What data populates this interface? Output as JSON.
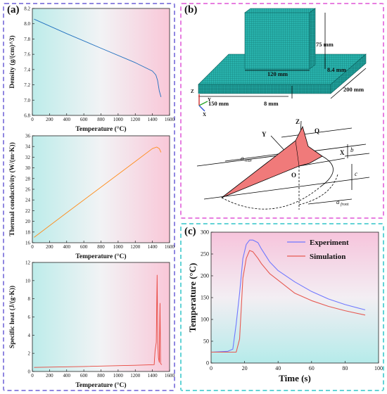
{
  "panels": {
    "a_label": "(a)",
    "b_label": "(b)",
    "c_label": "(c)"
  },
  "colors": {
    "density": "#1f6fbf",
    "conductivity": "#ff8c1a",
    "specific_heat": "#e8453c",
    "experiment": "#6f78ff",
    "simulation": "#e65a52",
    "mesh": "#1aa3a0",
    "heat_source": "#f07a7a"
  },
  "panel_b": {
    "dims": [
      "75 mm",
      "120 mm",
      "8.4 mm",
      "200 mm",
      "150 mm",
      "8 mm"
    ],
    "axes": {
      "z": "Z",
      "y": "Y",
      "x": "X"
    },
    "heat_source": {
      "z": "Z",
      "q": "Q",
      "y": "Y",
      "x": "X",
      "o": "O",
      "b": "b",
      "c": "c",
      "a_rear": "a",
      "a_rear_sub": "rear",
      "a_front": "a",
      "a_front_sub": "front"
    }
  },
  "chart_data": [
    {
      "type": "line",
      "xlabel": "Temperature (°C)",
      "ylabel": "Density (g/(cm)^3)",
      "xlim": [
        0,
        1600
      ],
      "ylim": [
        6.8,
        8.2
      ],
      "xticks": [
        0,
        200,
        400,
        600,
        800,
        1000,
        1200,
        1400,
        1600
      ],
      "yticks": [
        6.8,
        7.0,
        7.2,
        7.4,
        7.6,
        7.8,
        8.0,
        8.2
      ],
      "series": [
        {
          "x": [
            20,
            400,
            800,
            1200,
            1400,
            1440,
            1460,
            1480,
            1500
          ],
          "y": [
            8.06,
            7.87,
            7.68,
            7.49,
            7.38,
            7.33,
            7.26,
            7.12,
            7.04
          ]
        }
      ]
    },
    {
      "type": "line",
      "xlabel": "Temperature (°C)",
      "ylabel": "Thermal conductivity (W/(m·K))",
      "xlim": [
        0,
        1600
      ],
      "ylim": [
        16,
        36
      ],
      "xticks": [
        0,
        200,
        400,
        600,
        800,
        1000,
        1200,
        1400,
        1600
      ],
      "yticks": [
        16,
        18,
        20,
        22,
        24,
        26,
        28,
        30,
        32,
        34,
        36
      ],
      "series": [
        {
          "x": [
            20,
            400,
            800,
            1200,
            1400,
            1450,
            1480,
            1500
          ],
          "y": [
            17.0,
            21.6,
            26.4,
            31.2,
            33.6,
            33.9,
            33.6,
            32.9
          ]
        }
      ]
    },
    {
      "type": "line",
      "xlabel": "Temperature (°C)",
      "ylabel": "Specific heat (J/(g·K))",
      "xlim": [
        0,
        1600
      ],
      "ylim": [
        0,
        12
      ],
      "xticks": [
        0,
        200,
        400,
        600,
        800,
        1000,
        1200,
        1400,
        1600
      ],
      "yticks": [
        0,
        2,
        4,
        6,
        8,
        10,
        12
      ],
      "series": [
        {
          "x": [
            20,
            600,
            1200,
            1420,
            1430,
            1445,
            1455,
            1462,
            1470,
            1480,
            1488,
            1495,
            1502,
            1510
          ],
          "y": [
            0.45,
            0.55,
            0.68,
            0.75,
            2.2,
            3.2,
            10.6,
            3.2,
            1.5,
            1.0,
            7.5,
            0.9,
            0.8,
            0.75
          ]
        }
      ]
    },
    {
      "type": "line",
      "xlabel": "Time (s)",
      "ylabel": "Temperature (°C)",
      "xlim": [
        0,
        100
      ],
      "ylim": [
        0,
        300
      ],
      "xticks": [
        0,
        20,
        40,
        60,
        80,
        100
      ],
      "yticks": [
        0,
        50,
        100,
        150,
        200,
        250,
        300
      ],
      "legend": "top-right",
      "series": [
        {
          "name": "Experiment",
          "x": [
            0,
            10,
            13,
            15,
            17,
            19,
            21,
            23,
            25,
            28,
            30,
            35,
            40,
            50,
            60,
            70,
            80,
            92
          ],
          "y": [
            25,
            27,
            32,
            90,
            160,
            240,
            272,
            282,
            282,
            276,
            262,
            232,
            212,
            186,
            164,
            147,
            134,
            122
          ]
        },
        {
          "name": "Simulation",
          "x": [
            0,
            15,
            17,
            19,
            21,
            23,
            25,
            28,
            30,
            35,
            40,
            50,
            60,
            70,
            80,
            92
          ],
          "y": [
            25,
            25,
            55,
            195,
            240,
            258,
            255,
            240,
            228,
            205,
            190,
            160,
            143,
            130,
            120,
            110
          ]
        }
      ]
    }
  ]
}
